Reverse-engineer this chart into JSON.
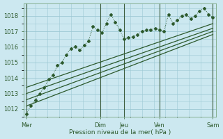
{
  "bg_color": "#cce8f0",
  "grid_color": "#9dc8d4",
  "line_color": "#2d5a2d",
  "xlabel": "Pression niveau de la mer( hPa )",
  "ylim": [
    1011.5,
    1018.8
  ],
  "xlim": [
    0,
    130
  ],
  "yticks": [
    1012,
    1013,
    1014,
    1015,
    1016,
    1017,
    1018
  ],
  "day_ticks_x": [
    2,
    52,
    68,
    92,
    128
  ],
  "day_labels": [
    "Mer",
    "Dim",
    "Jeu",
    "Ven",
    "Sam"
  ],
  "series1_x": [
    2,
    5,
    8,
    11,
    14,
    17,
    20,
    23,
    26,
    29,
    32,
    35,
    38,
    41,
    44,
    47,
    50,
    53,
    56,
    59,
    62,
    65,
    68,
    71,
    74,
    77,
    80,
    83,
    86,
    89,
    92,
    95,
    98,
    101,
    104,
    107,
    110,
    113,
    116,
    119,
    122,
    125,
    128
  ],
  "series1_y": [
    1011.7,
    1012.2,
    1012.6,
    1013.0,
    1013.4,
    1013.9,
    1014.2,
    1014.8,
    1015.0,
    1015.5,
    1015.9,
    1016.0,
    1015.8,
    1016.1,
    1016.4,
    1017.3,
    1017.1,
    1016.9,
    1017.5,
    1018.1,
    1017.6,
    1017.1,
    1016.5,
    1016.6,
    1016.65,
    1016.8,
    1017.0,
    1017.1,
    1017.1,
    1017.2,
    1017.1,
    1017.0,
    1018.1,
    1017.5,
    1017.7,
    1018.0,
    1018.1,
    1017.8,
    1018.0,
    1018.3,
    1018.5,
    1018.1,
    1017.9
  ],
  "trend1_x": [
    2,
    128
  ],
  "trend1_y": [
    1012.2,
    1016.8
  ],
  "trend2_x": [
    2,
    128
  ],
  "trend2_y": [
    1012.6,
    1017.0
  ],
  "trend3_x": [
    2,
    128
  ],
  "trend3_y": [
    1013.0,
    1017.2
  ],
  "trend4_x": [
    2,
    128
  ],
  "trend4_y": [
    1013.4,
    1017.5
  ]
}
